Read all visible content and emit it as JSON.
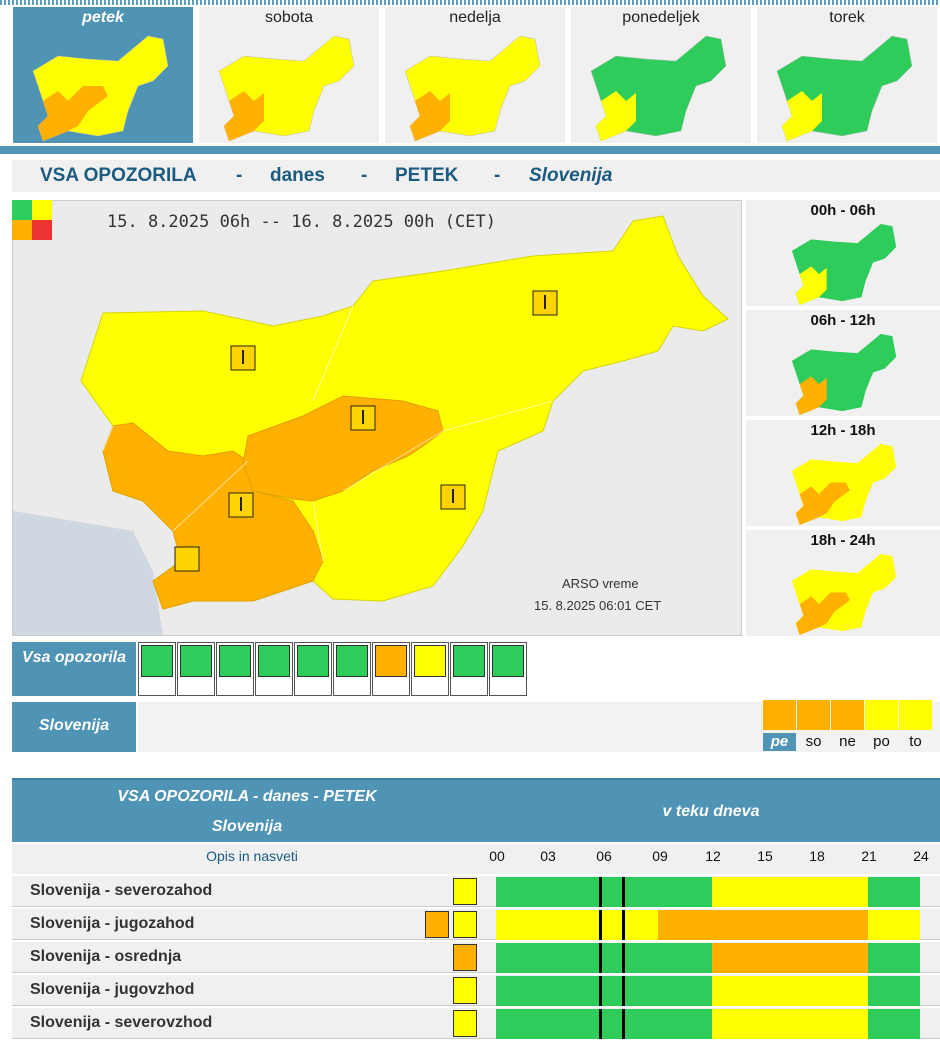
{
  "days": [
    {
      "label": "petek",
      "active": true
    },
    {
      "label": "sobota",
      "active": false
    },
    {
      "label": "nedelja",
      "active": false
    },
    {
      "label": "ponedeljek",
      "active": false
    },
    {
      "label": "torek",
      "active": false
    }
  ],
  "title": {
    "part1": "VSA OPOZORILA",
    "sep": "-",
    "part2": "danes",
    "part3": "PETEK",
    "part4": "Slovenija"
  },
  "map": {
    "date_range": "15. 8.2025 06h -- 16. 8.2025 00h (CET)",
    "credit": "ARSO vreme",
    "issued": "15. 8.2025  06:01 CET"
  },
  "periods": [
    {
      "label": "00h - 06h"
    },
    {
      "label": "06h - 12h"
    },
    {
      "label": "12h - 18h"
    },
    {
      "label": "18h - 24h"
    }
  ],
  "hazards": {
    "label": "Vsa opozorila",
    "icons": [
      "wind-icon",
      "rain-icon",
      "thunderstorm-icon",
      "snow-icon",
      "snow-ice-icon",
      "low-temperature-icon",
      "high-temperature-icon",
      "fire-icon",
      "coastal-icon",
      "fog-icon"
    ]
  },
  "region": {
    "label": "Slovenija",
    "day_short": [
      "pe",
      "so",
      "ne",
      "po",
      "to"
    ]
  },
  "table": {
    "head_line1": "VSA OPOZORILA - danes - PETEK",
    "head_line2": "Slovenija",
    "head_right": "v teku dneva",
    "opis": "Opis in nasveti",
    "hours": [
      "00",
      "03",
      "06",
      "09",
      "12",
      "15",
      "18",
      "21",
      "24"
    ],
    "rows": [
      {
        "name": "Slovenija - severozahod"
      },
      {
        "name": "Slovenija - jugozahod"
      },
      {
        "name": "Slovenija - osrednja"
      },
      {
        "name": "Slovenija - jugovzhod"
      },
      {
        "name": "Slovenija - severovzhod"
      }
    ]
  },
  "colors": {
    "green": "#2ecc5a",
    "yellow": "#ffff00",
    "orange": "#ffb000",
    "brand_blue": "#4f93b5",
    "title_blue": "#1c5b80"
  }
}
